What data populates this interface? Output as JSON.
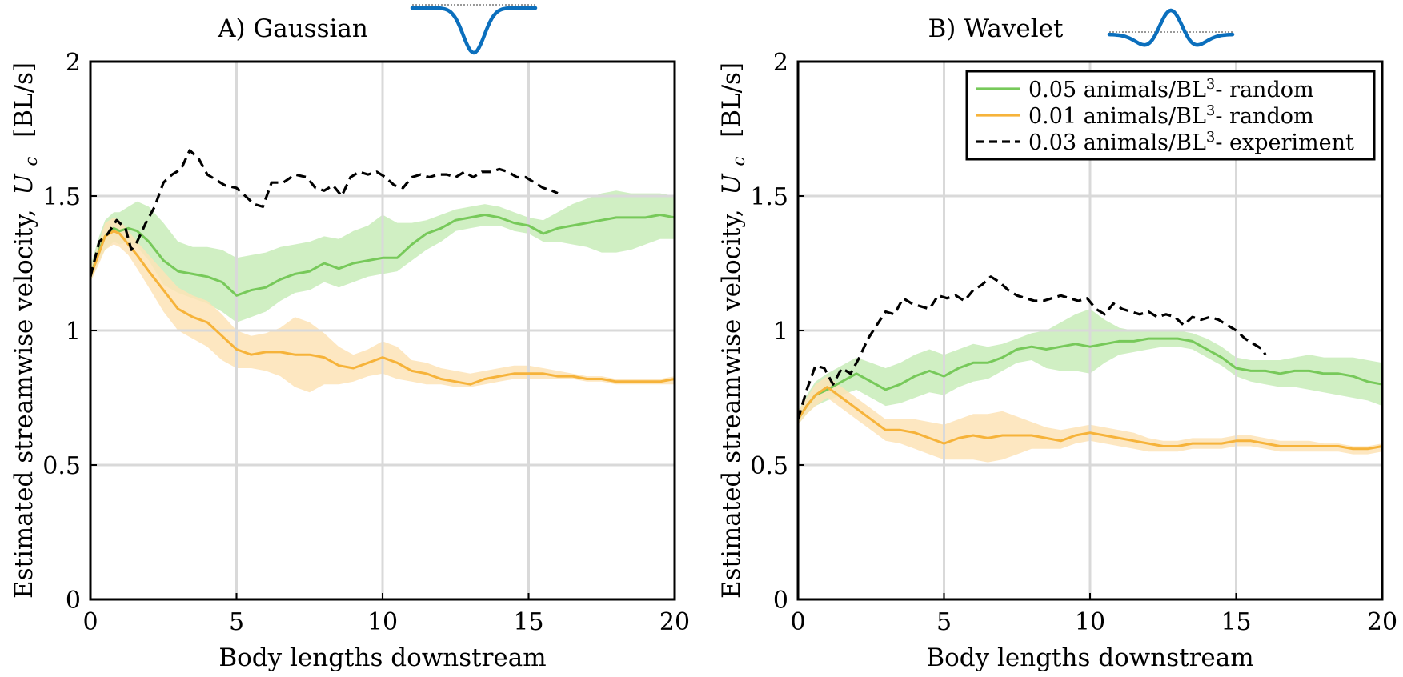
{
  "colors": {
    "green": "#77c95a",
    "green_band": "#c8ecb8",
    "orange": "#f6b33a",
    "orange_band": "#fde3b6",
    "black": "#000000",
    "icon_blue": "#0b6fbd",
    "grid": "#d9d9d9"
  },
  "legend": {
    "items": [
      {
        "color": "#77c95a",
        "dash": false,
        "prefix": "0.05 animals/BL",
        "sup": "3",
        "suffix": "- random"
      },
      {
        "color": "#f6b33a",
        "dash": false,
        "prefix": "0.01 animals/BL",
        "sup": "3",
        "suffix": "- random"
      },
      {
        "color": "#000000",
        "dash": true,
        "prefix": "0.03 animals/BL",
        "sup": "3",
        "suffix": "- experiment"
      }
    ]
  },
  "chart_data": [
    {
      "type": "line",
      "title": "A) Gaussian",
      "icon": "gaussian-waveform-icon",
      "xlabel": "Body lengths downstream",
      "ylabel_text": "Estimated streamwise velocity,",
      "ylabel_symbol": "U",
      "ylabel_subscript": "c",
      "ylabel_unit": "[BL/s]",
      "xlim": [
        0,
        20
      ],
      "ylim": [
        0,
        2
      ],
      "xticks": [
        0,
        5,
        10,
        15,
        20
      ],
      "yticks": [
        0,
        0.5,
        1,
        1.5,
        2
      ],
      "ytick_labels": [
        "0",
        "0.5",
        "1",
        "1.5",
        "2"
      ],
      "xtick_labels": [
        "0",
        "5",
        "10",
        "15",
        "20"
      ],
      "grid": true,
      "series": [
        {
          "name": "0.05 animals/BL3- random",
          "color": "#77c95a",
          "band": "#c8ecb8",
          "x": [
            0,
            0.3,
            0.5,
            0.8,
            1,
            1.3,
            1.6,
            2,
            2.5,
            3,
            3.5,
            4,
            4.5,
            5,
            5.5,
            6,
            6.5,
            7,
            7.5,
            8,
            8.5,
            9,
            9.5,
            10,
            10.5,
            11,
            11.5,
            12,
            12.5,
            13,
            13.5,
            14,
            14.5,
            15,
            15.5,
            16,
            16.5,
            17,
            17.5,
            18,
            18.5,
            19,
            19.5,
            20
          ],
          "values": [
            1.2,
            1.3,
            1.35,
            1.38,
            1.37,
            1.38,
            1.37,
            1.33,
            1.26,
            1.22,
            1.21,
            1.2,
            1.18,
            1.13,
            1.15,
            1.16,
            1.19,
            1.21,
            1.22,
            1.25,
            1.23,
            1.25,
            1.26,
            1.27,
            1.27,
            1.32,
            1.36,
            1.38,
            1.41,
            1.42,
            1.43,
            1.42,
            1.4,
            1.39,
            1.36,
            1.38,
            1.39,
            1.4,
            1.41,
            1.42,
            1.42,
            1.42,
            1.43,
            1.42
          ],
          "band_lower": [
            1.18,
            1.26,
            1.3,
            1.33,
            1.32,
            1.33,
            1.31,
            1.26,
            1.17,
            1.14,
            1.12,
            1.1,
            1.07,
            1.03,
            1.05,
            1.07,
            1.11,
            1.14,
            1.15,
            1.18,
            1.16,
            1.18,
            1.2,
            1.21,
            1.22,
            1.26,
            1.3,
            1.33,
            1.37,
            1.38,
            1.39,
            1.39,
            1.37,
            1.36,
            1.33,
            1.33,
            1.32,
            1.31,
            1.29,
            1.29,
            1.3,
            1.32,
            1.34,
            1.34
          ],
          "band_upper": [
            1.24,
            1.35,
            1.41,
            1.44,
            1.44,
            1.46,
            1.48,
            1.46,
            1.4,
            1.33,
            1.31,
            1.31,
            1.3,
            1.27,
            1.28,
            1.29,
            1.31,
            1.32,
            1.33,
            1.35,
            1.34,
            1.37,
            1.39,
            1.43,
            1.4,
            1.4,
            1.41,
            1.43,
            1.45,
            1.46,
            1.47,
            1.46,
            1.44,
            1.42,
            1.41,
            1.44,
            1.47,
            1.49,
            1.51,
            1.52,
            1.51,
            1.51,
            1.51,
            1.5
          ]
        },
        {
          "name": "0.01 animals/BL3- random",
          "color": "#f6b33a",
          "band": "#fde3b6",
          "x": [
            0,
            0.3,
            0.5,
            0.8,
            1,
            1.3,
            1.6,
            2,
            2.5,
            3,
            3.5,
            4,
            4.5,
            5,
            5.5,
            6,
            6.5,
            7,
            7.5,
            8,
            8.5,
            9,
            9.5,
            10,
            10.5,
            11,
            11.5,
            12,
            12.5,
            13,
            13.5,
            14,
            14.5,
            15,
            15.5,
            16,
            16.5,
            17,
            17.5,
            18,
            18.5,
            19,
            19.5,
            20
          ],
          "values": [
            1.2,
            1.29,
            1.35,
            1.37,
            1.36,
            1.32,
            1.28,
            1.22,
            1.15,
            1.08,
            1.05,
            1.03,
            0.98,
            0.93,
            0.91,
            0.92,
            0.92,
            0.91,
            0.91,
            0.9,
            0.87,
            0.86,
            0.88,
            0.9,
            0.88,
            0.85,
            0.84,
            0.82,
            0.81,
            0.8,
            0.82,
            0.83,
            0.84,
            0.84,
            0.84,
            0.83,
            0.83,
            0.82,
            0.82,
            0.81,
            0.81,
            0.81,
            0.81,
            0.82
          ],
          "band_lower": [
            1.18,
            1.25,
            1.3,
            1.32,
            1.31,
            1.28,
            1.23,
            1.16,
            1.07,
            1.0,
            0.97,
            0.94,
            0.89,
            0.86,
            0.86,
            0.85,
            0.83,
            0.79,
            0.77,
            0.8,
            0.8,
            0.81,
            0.83,
            0.84,
            0.82,
            0.81,
            0.8,
            0.8,
            0.79,
            0.79,
            0.8,
            0.81,
            0.82,
            0.82,
            0.82,
            0.82,
            0.82,
            0.81,
            0.81,
            0.8,
            0.8,
            0.8,
            0.8,
            0.8
          ],
          "band_upper": [
            1.23,
            1.33,
            1.4,
            1.42,
            1.41,
            1.37,
            1.33,
            1.28,
            1.22,
            1.16,
            1.13,
            1.11,
            1.06,
            1.0,
            0.98,
            0.99,
            1.01,
            1.05,
            1.03,
            0.99,
            0.94,
            0.91,
            0.93,
            0.96,
            0.94,
            0.89,
            0.88,
            0.86,
            0.85,
            0.84,
            0.85,
            0.86,
            0.87,
            0.87,
            0.86,
            0.85,
            0.84,
            0.83,
            0.83,
            0.82,
            0.82,
            0.82,
            0.82,
            0.83
          ]
        },
        {
          "name": "0.03 animals/BL3- experiment",
          "color": "#000000",
          "dash": true,
          "x": [
            0,
            0.3,
            0.6,
            0.9,
            1.2,
            1.4,
            1.6,
            1.9,
            2.2,
            2.5,
            2.8,
            3.1,
            3.4,
            3.7,
            4.0,
            4.3,
            4.6,
            5.0,
            5.3,
            5.6,
            5.9,
            6.2,
            6.6,
            7.0,
            7.4,
            7.7,
            8.0,
            8.3,
            8.6,
            8.9,
            9.2,
            9.5,
            9.8,
            10.1,
            10.4,
            10.7,
            11.0,
            11.3,
            11.6,
            11.9,
            12.2,
            12.5,
            12.8,
            13.1,
            13.4,
            13.7,
            14.0,
            14.3,
            14.6,
            14.9,
            15.2,
            15.5,
            15.8,
            16.0
          ],
          "values": [
            1.2,
            1.33,
            1.36,
            1.41,
            1.38,
            1.3,
            1.33,
            1.4,
            1.46,
            1.55,
            1.58,
            1.6,
            1.67,
            1.64,
            1.58,
            1.56,
            1.54,
            1.53,
            1.5,
            1.47,
            1.46,
            1.55,
            1.55,
            1.58,
            1.57,
            1.53,
            1.52,
            1.54,
            1.5,
            1.57,
            1.59,
            1.58,
            1.59,
            1.57,
            1.54,
            1.53,
            1.57,
            1.58,
            1.57,
            1.58,
            1.58,
            1.57,
            1.59,
            1.57,
            1.59,
            1.59,
            1.6,
            1.59,
            1.57,
            1.57,
            1.55,
            1.53,
            1.52,
            1.51
          ]
        }
      ]
    },
    {
      "type": "line",
      "title": "B) Wavelet",
      "icon": "wavelet-waveform-icon",
      "xlabel": "Body lengths downstream",
      "ylabel_text": "Estimated streamwise velocity,",
      "ylabel_symbol": "U",
      "ylabel_subscript": "c",
      "ylabel_unit": "[BL/s]",
      "xlim": [
        0,
        20
      ],
      "ylim": [
        0,
        2
      ],
      "xticks": [
        0,
        5,
        10,
        15,
        20
      ],
      "yticks": [
        0,
        0.5,
        1,
        1.5,
        2
      ],
      "ytick_labels": [
        "0",
        "0.5",
        "1",
        "1.5",
        "2"
      ],
      "xtick_labels": [
        "0",
        "5",
        "10",
        "15",
        "20"
      ],
      "grid": true,
      "series": [
        {
          "name": "0.05 animals/BL3- random",
          "color": "#77c95a",
          "band": "#c8ecb8",
          "x": [
            0,
            0.3,
            0.6,
            1,
            1.5,
            2,
            2.5,
            3,
            3.5,
            4,
            4.5,
            5,
            5.5,
            6,
            6.5,
            7,
            7.5,
            8,
            8.5,
            9,
            9.5,
            10,
            10.5,
            11,
            11.5,
            12,
            12.5,
            13,
            13.5,
            14,
            14.5,
            15,
            15.5,
            16,
            16.5,
            17,
            17.5,
            18,
            18.5,
            19,
            19.5,
            20
          ],
          "values": [
            0.67,
            0.72,
            0.76,
            0.78,
            0.81,
            0.84,
            0.81,
            0.78,
            0.8,
            0.83,
            0.85,
            0.83,
            0.86,
            0.88,
            0.88,
            0.9,
            0.93,
            0.94,
            0.93,
            0.94,
            0.95,
            0.94,
            0.95,
            0.96,
            0.96,
            0.97,
            0.97,
            0.97,
            0.96,
            0.93,
            0.9,
            0.86,
            0.85,
            0.85,
            0.84,
            0.85,
            0.85,
            0.84,
            0.84,
            0.83,
            0.81,
            0.8
          ],
          "band_lower": [
            0.65,
            0.69,
            0.72,
            0.74,
            0.76,
            0.78,
            0.75,
            0.72,
            0.73,
            0.75,
            0.77,
            0.76,
            0.79,
            0.81,
            0.82,
            0.85,
            0.88,
            0.89,
            0.86,
            0.85,
            0.85,
            0.84,
            0.88,
            0.91,
            0.92,
            0.93,
            0.94,
            0.94,
            0.93,
            0.9,
            0.87,
            0.83,
            0.81,
            0.8,
            0.79,
            0.79,
            0.78,
            0.77,
            0.76,
            0.75,
            0.74,
            0.72
          ],
          "band_upper": [
            0.7,
            0.76,
            0.81,
            0.84,
            0.87,
            0.9,
            0.88,
            0.86,
            0.88,
            0.91,
            0.93,
            0.91,
            0.93,
            0.95,
            0.94,
            0.95,
            0.97,
            0.99,
            1.0,
            1.03,
            1.06,
            1.08,
            1.04,
            1.01,
            1.0,
            1.0,
            1.0,
            1.0,
            0.99,
            0.97,
            0.94,
            0.9,
            0.89,
            0.89,
            0.89,
            0.9,
            0.91,
            0.9,
            0.9,
            0.9,
            0.89,
            0.88
          ]
        },
        {
          "name": "0.01 animals/BL3- random",
          "color": "#f6b33a",
          "band": "#fde3b6",
          "x": [
            0,
            0.3,
            0.6,
            1,
            1.5,
            2,
            2.5,
            3,
            3.5,
            4,
            4.5,
            5,
            5.5,
            6,
            6.5,
            7,
            7.5,
            8,
            8.5,
            9,
            9.5,
            10,
            10.5,
            11,
            11.5,
            12,
            12.5,
            13,
            13.5,
            14,
            14.5,
            15,
            15.5,
            16,
            16.5,
            17,
            17.5,
            18,
            18.5,
            19,
            19.5,
            20
          ],
          "values": [
            0.67,
            0.72,
            0.76,
            0.79,
            0.75,
            0.71,
            0.67,
            0.63,
            0.63,
            0.62,
            0.6,
            0.58,
            0.6,
            0.61,
            0.6,
            0.61,
            0.61,
            0.61,
            0.6,
            0.59,
            0.61,
            0.62,
            0.61,
            0.6,
            0.59,
            0.58,
            0.57,
            0.57,
            0.58,
            0.58,
            0.58,
            0.59,
            0.59,
            0.58,
            0.57,
            0.57,
            0.57,
            0.57,
            0.57,
            0.56,
            0.56,
            0.57
          ],
          "band_lower": [
            0.65,
            0.69,
            0.72,
            0.75,
            0.71,
            0.67,
            0.63,
            0.59,
            0.58,
            0.56,
            0.54,
            0.52,
            0.52,
            0.52,
            0.51,
            0.52,
            0.54,
            0.56,
            0.56,
            0.56,
            0.58,
            0.59,
            0.58,
            0.57,
            0.56,
            0.55,
            0.55,
            0.55,
            0.56,
            0.56,
            0.56,
            0.57,
            0.57,
            0.56,
            0.55,
            0.55,
            0.55,
            0.55,
            0.55,
            0.54,
            0.54,
            0.55
          ],
          "band_upper": [
            0.7,
            0.75,
            0.8,
            0.83,
            0.79,
            0.75,
            0.71,
            0.67,
            0.67,
            0.67,
            0.66,
            0.65,
            0.67,
            0.69,
            0.69,
            0.7,
            0.68,
            0.66,
            0.64,
            0.63,
            0.64,
            0.65,
            0.64,
            0.63,
            0.62,
            0.6,
            0.59,
            0.59,
            0.6,
            0.6,
            0.6,
            0.61,
            0.61,
            0.6,
            0.59,
            0.59,
            0.59,
            0.58,
            0.58,
            0.57,
            0.57,
            0.58
          ]
        },
        {
          "name": "0.03 animals/BL3- experiment",
          "color": "#000000",
          "dash": true,
          "x": [
            0,
            0.3,
            0.6,
            0.9,
            1.2,
            1.5,
            1.8,
            2.1,
            2.4,
            2.7,
            3.0,
            3.3,
            3.6,
            3.9,
            4.2,
            4.5,
            4.8,
            5.1,
            5.4,
            5.7,
            6.0,
            6.3,
            6.6,
            6.9,
            7.2,
            7.5,
            7.8,
            8.1,
            8.4,
            8.7,
            9.0,
            9.3,
            9.6,
            9.9,
            10.2,
            10.5,
            10.8,
            11.1,
            11.4,
            11.7,
            12.0,
            12.3,
            12.6,
            12.9,
            13.2,
            13.5,
            13.8,
            14.1,
            14.4,
            14.7,
            15.0,
            15.3,
            15.6,
            15.9,
            16.0
          ],
          "values": [
            0.67,
            0.78,
            0.87,
            0.86,
            0.8,
            0.86,
            0.84,
            0.9,
            0.97,
            1.02,
            1.07,
            1.06,
            1.12,
            1.1,
            1.09,
            1.08,
            1.13,
            1.12,
            1.13,
            1.11,
            1.15,
            1.17,
            1.2,
            1.18,
            1.15,
            1.13,
            1.12,
            1.11,
            1.11,
            1.12,
            1.13,
            1.12,
            1.11,
            1.12,
            1.08,
            1.06,
            1.1,
            1.08,
            1.07,
            1.06,
            1.07,
            1.05,
            1.06,
            1.05,
            1.02,
            1.05,
            1.04,
            1.05,
            1.04,
            1.02,
            1.0,
            0.97,
            0.95,
            0.93,
            0.91
          ]
        }
      ]
    }
  ]
}
